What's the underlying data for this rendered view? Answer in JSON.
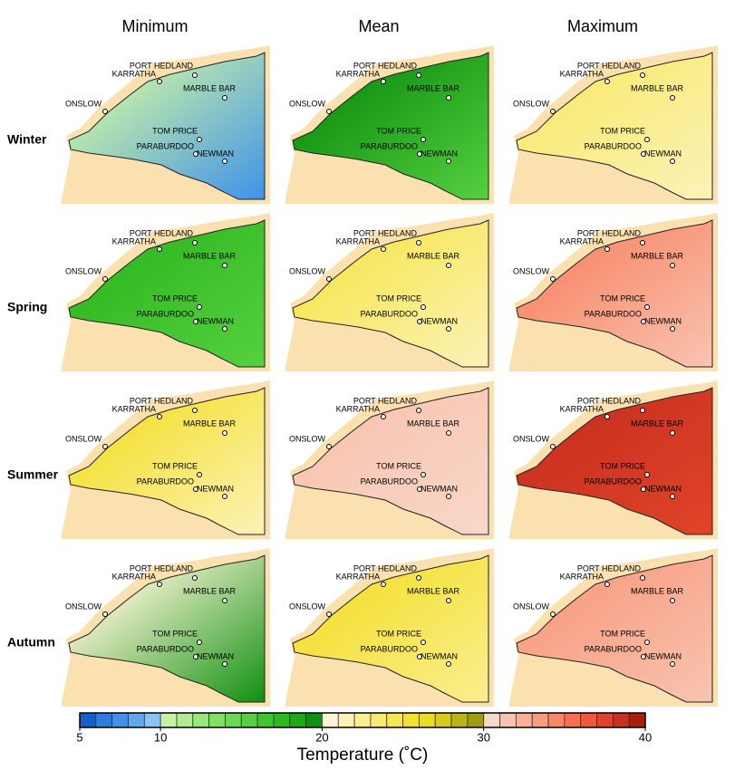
{
  "columns": [
    "Minimum",
    "Mean",
    "Maximum"
  ],
  "rows": [
    "Winter",
    "Spring",
    "Summer",
    "Autumn"
  ],
  "towns": [
    "PORT HEDLAND",
    "KARRATHA",
    "ONSLOW",
    "MARBLE BAR",
    "TOM PRICE",
    "PARABURDOO",
    "NEWMAN"
  ],
  "panel_colors": [
    [
      "#c8f0a8",
      "#3f92ea"
    ],
    [
      "#109010",
      "#55d040"
    ],
    [
      "#f8ea70",
      "#fcf2b8"
    ],
    [
      "#30b820",
      "#55d040"
    ],
    [
      "#f6e650",
      "#fcf2b8"
    ],
    [
      "#f88868",
      "#f8c4b0"
    ],
    [
      "#f4e030",
      "#fcf2b8"
    ],
    [
      "#f8c4b0",
      "#f8d8c8"
    ],
    [
      "#c83020",
      "#e04428"
    ],
    [
      "#fdf6d8",
      "#109010"
    ],
    [
      "#f4e030",
      "#faee90"
    ],
    [
      "#f89c80",
      "#f8c4b0"
    ]
  ],
  "colorbar": {
    "lim": [
      5,
      40
    ],
    "ticks": [
      5,
      10,
      20,
      30,
      40
    ],
    "label": "Temperature (˚C)",
    "colors": [
      "#1560c8",
      "#2a7ee0",
      "#3f92ea",
      "#5fa8f0",
      "#8cc2f5",
      "#c8f0a8",
      "#b0ec90",
      "#98e878",
      "#80e060",
      "#6ad850",
      "#55d040",
      "#40c430",
      "#30b820",
      "#20a818",
      "#109010",
      "#fdf6d8",
      "#fcf2b8",
      "#faee90",
      "#f8ea70",
      "#f6e650",
      "#f4e030",
      "#eedc20",
      "#d8cc18",
      "#bcb414",
      "#a09c10",
      "#f8d8c8",
      "#f8c4b0",
      "#f8b098",
      "#f89c80",
      "#f88868",
      "#f87050",
      "#f05838",
      "#e04428",
      "#c83020",
      "#a82010"
    ]
  }
}
